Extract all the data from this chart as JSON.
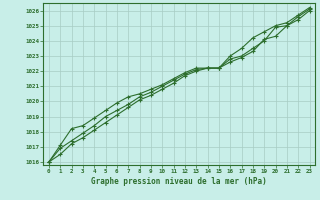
{
  "title": "Graphe pression niveau de la mer (hPa)",
  "bg_color": "#c8eee8",
  "line_color": "#2d6e2d",
  "grid_color": "#a8ccc4",
  "spine_color": "#2d6e2d",
  "ylim": [
    1015.8,
    1026.5
  ],
  "xlim": [
    -0.5,
    23.5
  ],
  "yticks": [
    1016,
    1017,
    1018,
    1019,
    1020,
    1021,
    1022,
    1023,
    1024,
    1025,
    1026
  ],
  "xticks": [
    0,
    1,
    2,
    3,
    4,
    5,
    6,
    7,
    8,
    9,
    10,
    11,
    12,
    13,
    14,
    15,
    16,
    17,
    18,
    19,
    20,
    21,
    22,
    23
  ],
  "series1": [
    1016.0,
    1016.9,
    1017.4,
    1017.9,
    1018.4,
    1019.0,
    1019.4,
    1019.8,
    1020.3,
    1020.6,
    1021.0,
    1021.4,
    1021.8,
    1022.1,
    1022.2,
    1022.2,
    1022.8,
    1023.0,
    1023.5,
    1024.0,
    1024.9,
    1025.0,
    1025.6,
    1026.1
  ],
  "series2": [
    1016.0,
    1017.1,
    1018.2,
    1018.4,
    1018.9,
    1019.4,
    1019.9,
    1020.3,
    1020.5,
    1020.8,
    1021.1,
    1021.5,
    1021.9,
    1022.2,
    1022.2,
    1022.2,
    1023.0,
    1023.5,
    1024.2,
    1024.6,
    1025.0,
    1025.2,
    1025.7,
    1026.2
  ],
  "series3": [
    1016.0,
    1016.5,
    1017.2,
    1017.6,
    1018.1,
    1018.6,
    1019.1,
    1019.6,
    1020.1,
    1020.4,
    1020.8,
    1021.2,
    1021.7,
    1022.0,
    1022.2,
    1022.2,
    1022.6,
    1022.9,
    1023.3,
    1024.1,
    1024.3,
    1025.0,
    1025.4,
    1026.0
  ]
}
